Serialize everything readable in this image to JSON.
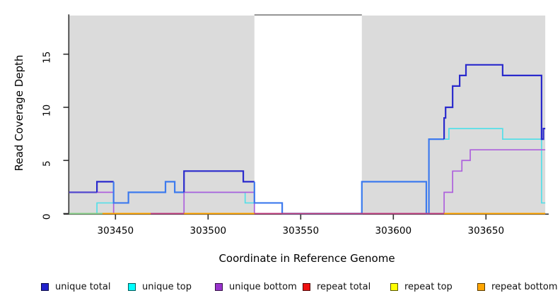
{
  "figure": {
    "background": "#FFFFFF"
  },
  "chart_data": {
    "type": "step-line",
    "title": "",
    "xlabel": "Coordinate in Reference Genome",
    "ylabel": "Read Coverage Depth",
    "x_range": [
      303425,
      303682
    ],
    "y_range": [
      0,
      18.6
    ],
    "x_ticks": [
      303450,
      303500,
      303550,
      303600,
      303650
    ],
    "y_ticks": [
      0,
      5,
      10,
      15
    ],
    "grid": false,
    "legend_position": "bottom",
    "shaded_regions": [
      {
        "x1": 303425,
        "x2": 303525,
        "color": "#DBDBDB"
      },
      {
        "x1": 303583,
        "x2": 303682,
        "color": "#DBDBDB"
      }
    ],
    "gap_marker": {
      "x1": 303525,
      "x2": 303583,
      "color": "#8A8A8A"
    },
    "series": [
      {
        "name": "unique total",
        "legend_color": "#2222CC",
        "line_color": "#2A2ACC",
        "blend_top_color": "#3D7AEE",
        "blend_bottom_color": "#5247CE",
        "line_width": 2.2,
        "points": [
          [
            303425,
            2
          ],
          [
            303440,
            3
          ],
          [
            303449,
            1
          ],
          [
            303457,
            2
          ],
          [
            303477,
            3
          ],
          [
            303482,
            2
          ],
          [
            303487,
            4
          ],
          [
            303519,
            3
          ],
          [
            303525,
            1
          ],
          [
            303540,
            0
          ],
          [
            303583,
            3
          ],
          [
            303617.8,
            0
          ],
          [
            303619.2,
            7
          ],
          [
            303627.4,
            9
          ],
          [
            303628.2,
            10
          ],
          [
            303632,
            12
          ],
          [
            303635.8,
            13
          ],
          [
            303639.2,
            14
          ],
          [
            303659,
            13
          ],
          [
            303680,
            7
          ],
          [
            303681,
            8
          ]
        ]
      },
      {
        "name": "unique top",
        "legend_color": "#00FFFF",
        "line_color": "#55DFE8",
        "line_width": 1.7,
        "points": [
          [
            303425,
            0
          ],
          [
            303440,
            1
          ],
          [
            303457,
            2
          ],
          [
            303477,
            3
          ],
          [
            303482,
            2
          ],
          [
            303520,
            1
          ],
          [
            303540,
            0
          ],
          [
            303583,
            3
          ],
          [
            303617.8,
            0
          ],
          [
            303619.2,
            7
          ],
          [
            303630,
            8
          ],
          [
            303659,
            7
          ],
          [
            303680,
            1
          ]
        ]
      },
      {
        "name": "unique bottom",
        "legend_color": "#9933CC",
        "line_color": "#AD60DC",
        "line_width": 1.7,
        "points": [
          [
            303425,
            2
          ],
          [
            303449,
            0
          ],
          [
            303487,
            2
          ],
          [
            303525,
            0
          ],
          [
            303627.4,
            2
          ],
          [
            303632,
            4
          ],
          [
            303637,
            5
          ],
          [
            303641.5,
            6
          ]
        ]
      },
      {
        "name": "repeat total",
        "legend_color": "#EE1111",
        "line_color": "#C6417E",
        "line_width": 1.7,
        "zero_segments": [
          [
            303425,
            303682
          ]
        ]
      },
      {
        "name": "repeat top",
        "legend_color": "#FFFF00",
        "line_color": "#8CD28C",
        "line_width": 1.9,
        "zero_segments": [
          [
            303425,
            303443
          ]
        ]
      },
      {
        "name": "repeat bottom",
        "legend_color": "#FFA500",
        "line_color": "#FFA400",
        "line_width": 1.9,
        "zero_segments": [
          [
            303443,
            303469
          ],
          [
            303487,
            303525
          ],
          [
            303627.4,
            303682
          ]
        ]
      }
    ]
  }
}
